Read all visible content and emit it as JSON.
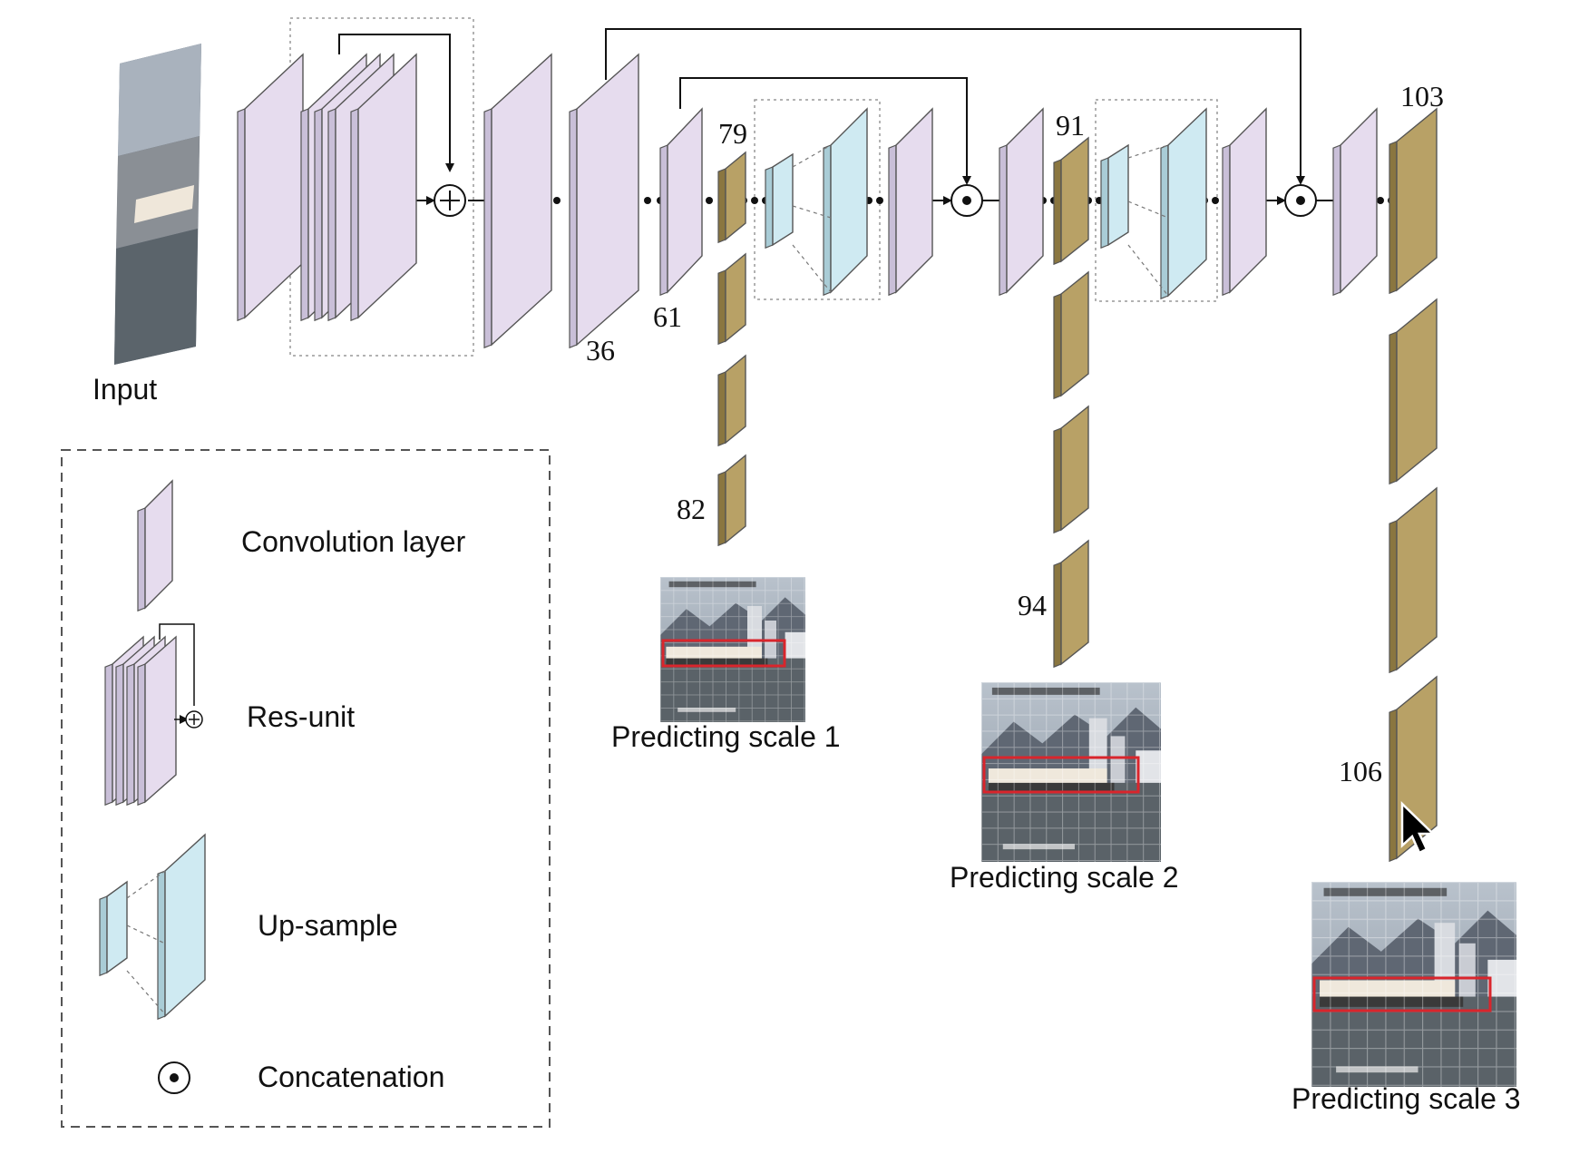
{
  "labels": {
    "input": "Input",
    "predict": [
      "Predicting scale 1",
      "Predicting scale 2",
      "Predicting scale 3"
    ]
  },
  "layer_numbers": {
    "n36": "36",
    "n61": "61",
    "n79": "79",
    "n82": "82",
    "n91": "91",
    "n94": "94",
    "n103": "103",
    "n106": "106"
  },
  "legend": {
    "items": [
      {
        "label": "Convolution layer",
        "icon": "convolution-layer-icon"
      },
      {
        "label": "Res-unit",
        "icon": "res-unit-icon"
      },
      {
        "label": "Up-sample",
        "icon": "up-sample-icon"
      },
      {
        "label": "Concatenation",
        "icon": "concatenation-icon"
      }
    ]
  },
  "colors": {
    "conv_fill": "#e6dcee",
    "conv_side": "#c9bfd8",
    "output_fill": "#b8a166",
    "output_side": "#8a7640",
    "upsample_fill": "#cfeaf2",
    "upsample_side": "#a9ccd6",
    "bbox": "#d9252c"
  },
  "icons": {
    "sum_node": "plus-circle-icon",
    "concat_node": "dot-circle-icon",
    "cursor": "mouse-pointer-icon"
  }
}
